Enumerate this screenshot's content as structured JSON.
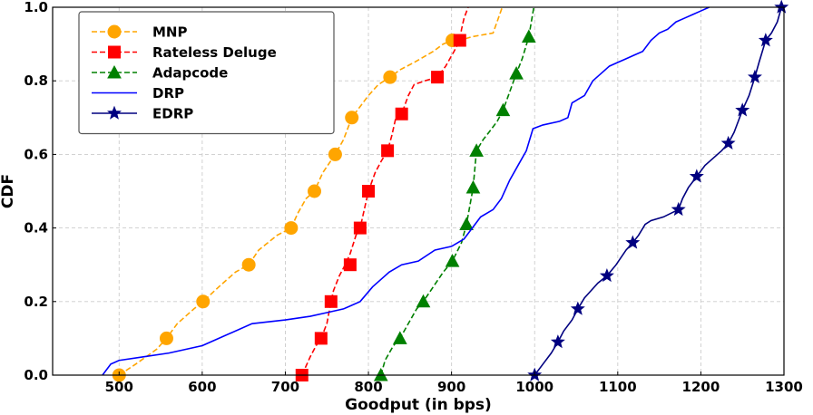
{
  "chart_data": {
    "type": "line",
    "title": "",
    "xlabel": "Goodput (in bps)",
    "ylabel": "CDF",
    "xlim": [
      420,
      1300
    ],
    "ylim": [
      0,
      1.0
    ],
    "xticks": [
      500,
      600,
      700,
      800,
      900,
      1000,
      1100,
      1200,
      1300
    ],
    "yticks": [
      0.0,
      0.2,
      0.4,
      0.6,
      0.8,
      1.0
    ],
    "xtick_labels": [
      "500",
      "600",
      "700",
      "800",
      "900",
      "1000",
      "1100",
      "1200",
      "1300"
    ],
    "ytick_labels": [
      "0.0",
      "0.2",
      "0.4",
      "0.6",
      "0.8",
      "1.0"
    ],
    "grid": true,
    "legend_position": "top-left",
    "series": [
      {
        "name": "MNP",
        "color": "#ffa500",
        "linestyle": "dashed",
        "marker": "circle",
        "x": [
          500,
          520,
          545,
          557,
          570,
          590,
          601,
          620,
          640,
          656,
          668,
          690,
          707,
          715,
          725,
          735,
          745,
          760,
          770,
          780,
          790,
          800,
          812,
          826,
          838,
          855,
          878,
          890,
          901,
          910,
          925,
          950,
          961
        ],
        "y": [
          0.0,
          0.03,
          0.07,
          0.1,
          0.14,
          0.18,
          0.2,
          0.24,
          0.28,
          0.3,
          0.34,
          0.38,
          0.4,
          0.44,
          0.48,
          0.5,
          0.55,
          0.6,
          0.64,
          0.7,
          0.73,
          0.76,
          0.79,
          0.81,
          0.83,
          0.85,
          0.88,
          0.9,
          0.91,
          0.91,
          0.92,
          0.93,
          1.0
        ],
        "marker_x": [
          500,
          557,
          601,
          656,
          707,
          735,
          760,
          780,
          826,
          901
        ],
        "marker_y": [
          0.0,
          0.1,
          0.2,
          0.3,
          0.4,
          0.5,
          0.6,
          0.7,
          0.81,
          0.91
        ]
      },
      {
        "name": "Rateless Deluge",
        "color": "#ff0000",
        "linestyle": "dashed",
        "marker": "square",
        "x": [
          720,
          730,
          737,
          743,
          750,
          755,
          758,
          765,
          772,
          778,
          785,
          790,
          795,
          800,
          808,
          815,
          823,
          828,
          833,
          840,
          848,
          855,
          868,
          883,
          893,
          903,
          910,
          912,
          915,
          920
        ],
        "y": [
          0.0,
          0.05,
          0.08,
          0.1,
          0.14,
          0.2,
          0.23,
          0.27,
          0.3,
          0.33,
          0.38,
          0.4,
          0.45,
          0.5,
          0.55,
          0.58,
          0.61,
          0.65,
          0.7,
          0.71,
          0.76,
          0.79,
          0.8,
          0.81,
          0.84,
          0.88,
          0.91,
          0.94,
          0.97,
          1.0
        ],
        "marker_x": [
          720,
          743,
          755,
          778,
          790,
          800,
          823,
          840,
          883,
          910
        ],
        "marker_y": [
          0.0,
          0.1,
          0.2,
          0.3,
          0.4,
          0.5,
          0.61,
          0.71,
          0.81,
          0.91
        ]
      },
      {
        "name": "Adapcode",
        "color": "#008000",
        "linestyle": "dashed",
        "marker": "triangle",
        "x": [
          815,
          820,
          830,
          838,
          848,
          858,
          866,
          878,
          890,
          901,
          912,
          918,
          922,
          926,
          930,
          938,
          945,
          955,
          962,
          970,
          978,
          985,
          993,
          996,
          999
        ],
        "y": [
          0.0,
          0.04,
          0.08,
          0.1,
          0.14,
          0.18,
          0.2,
          0.24,
          0.28,
          0.31,
          0.36,
          0.41,
          0.46,
          0.51,
          0.61,
          0.64,
          0.66,
          0.69,
          0.72,
          0.77,
          0.82,
          0.86,
          0.92,
          0.96,
          1.0
        ],
        "marker_x": [
          815,
          838,
          866,
          901,
          918,
          926,
          930,
          962,
          978,
          993
        ],
        "marker_y": [
          0.0,
          0.1,
          0.2,
          0.31,
          0.41,
          0.51,
          0.61,
          0.72,
          0.82,
          0.92
        ]
      },
      {
        "name": "DRP",
        "color": "#0000ff",
        "linestyle": "solid",
        "marker": "none",
        "x": [
          480,
          490,
          500,
          530,
          560,
          600,
          620,
          660,
          700,
          730,
          750,
          770,
          790,
          805,
          815,
          825,
          840,
          860,
          880,
          900,
          915,
          925,
          935,
          950,
          960,
          970,
          980,
          990,
          998,
          1010,
          1030,
          1040,
          1045,
          1060,
          1070,
          1080,
          1090,
          1100,
          1110,
          1120,
          1130,
          1140,
          1150,
          1160,
          1170,
          1180,
          1190,
          1200,
          1210
        ],
        "y": [
          0.0,
          0.03,
          0.04,
          0.05,
          0.06,
          0.08,
          0.1,
          0.14,
          0.15,
          0.16,
          0.17,
          0.18,
          0.2,
          0.24,
          0.26,
          0.28,
          0.3,
          0.31,
          0.34,
          0.35,
          0.37,
          0.4,
          0.43,
          0.45,
          0.48,
          0.53,
          0.57,
          0.61,
          0.67,
          0.68,
          0.69,
          0.7,
          0.74,
          0.76,
          0.8,
          0.82,
          0.84,
          0.85,
          0.86,
          0.87,
          0.88,
          0.91,
          0.93,
          0.94,
          0.96,
          0.97,
          0.98,
          0.99,
          1.0
        ],
        "marker_x": [],
        "marker_y": []
      },
      {
        "name": "EDRP",
        "color": "#000080",
        "linestyle": "solid",
        "marker": "star",
        "x": [
          1000,
          1010,
          1020,
          1028,
          1035,
          1045,
          1052,
          1060,
          1068,
          1076,
          1087,
          1098,
          1110,
          1118,
          1125,
          1133,
          1140,
          1155,
          1173,
          1178,
          1185,
          1195,
          1205,
          1215,
          1225,
          1233,
          1240,
          1245,
          1250,
          1258,
          1265,
          1270,
          1278,
          1285,
          1292,
          1297
        ],
        "y": [
          0.0,
          0.03,
          0.06,
          0.09,
          0.12,
          0.15,
          0.18,
          0.21,
          0.23,
          0.25,
          0.27,
          0.3,
          0.34,
          0.36,
          0.38,
          0.41,
          0.42,
          0.43,
          0.45,
          0.48,
          0.51,
          0.54,
          0.57,
          0.59,
          0.61,
          0.63,
          0.66,
          0.69,
          0.72,
          0.76,
          0.81,
          0.85,
          0.91,
          0.93,
          0.96,
          1.0
        ],
        "marker_x": [
          1000,
          1028,
          1052,
          1087,
          1118,
          1173,
          1195,
          1233,
          1250,
          1265,
          1278,
          1297
        ],
        "marker_y": [
          0.0,
          0.09,
          0.18,
          0.27,
          0.36,
          0.45,
          0.54,
          0.63,
          0.72,
          0.81,
          0.91,
          1.0
        ]
      }
    ]
  }
}
